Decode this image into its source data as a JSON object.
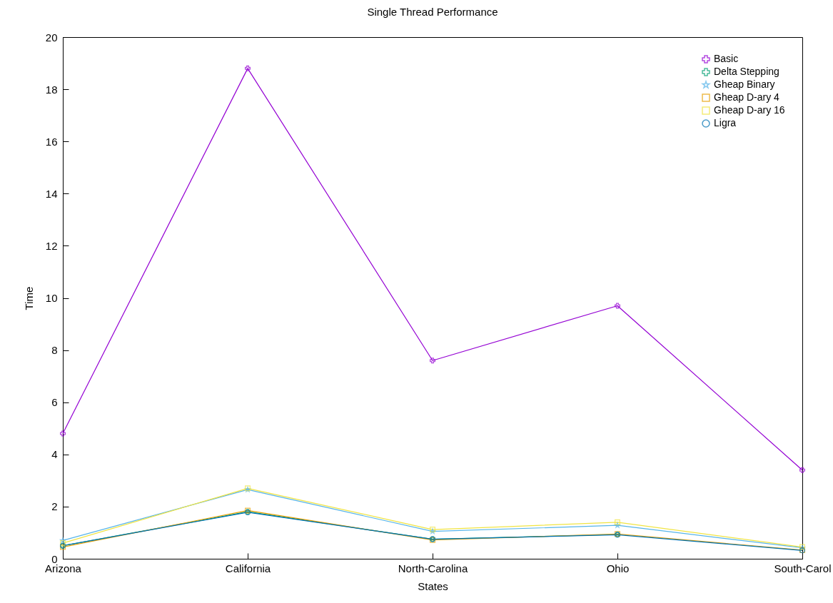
{
  "chart_data": {
    "type": "line",
    "title": "Single Thread Performance",
    "xlabel": "States",
    "ylabel": "Time",
    "categories": [
      "Arizona",
      "California",
      "North-Carolina",
      "Ohio",
      "South-Carol"
    ],
    "ylim": [
      0,
      20
    ],
    "yticks": [
      0,
      2,
      4,
      6,
      8,
      10,
      12,
      14,
      16,
      18,
      20
    ],
    "grid": false,
    "legend": "top right",
    "series": [
      {
        "name": "Basic",
        "color": "#9400d3",
        "marker": "cross",
        "values": [
          4.8,
          18.8,
          7.6,
          9.7,
          3.4
        ]
      },
      {
        "name": "Delta Stepping",
        "color": "#009e73",
        "marker": "cross",
        "values": [
          0.5,
          1.8,
          0.75,
          0.93,
          null
        ]
      },
      {
        "name": "Gheap Binary",
        "color": "#56b4e9",
        "marker": "star",
        "values": [
          0.7,
          2.65,
          1.05,
          1.28,
          0.42
        ]
      },
      {
        "name": "Gheap D-ary 4",
        "color": "#e69f00",
        "marker": "square",
        "values": [
          0.45,
          1.85,
          0.72,
          0.95,
          0.33
        ]
      },
      {
        "name": "Gheap D-ary 16",
        "color": "#f0e442",
        "marker": "square",
        "values": [
          0.6,
          2.7,
          1.12,
          1.4,
          0.45
        ]
      },
      {
        "name": "Ligra",
        "color": "#0072b2",
        "marker": "circle",
        "values": [
          0.5,
          1.78,
          0.75,
          0.92,
          0.32
        ]
      }
    ]
  }
}
